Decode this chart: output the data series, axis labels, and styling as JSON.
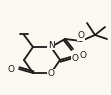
{
  "bg_color": "#faf8f0",
  "line_color": "#1a1a1a",
  "lw": 1.3,
  "fs": 6.5,
  "fig_w": 1.11,
  "fig_h": 0.95,
  "dpi": 100,
  "xlim": [
    0,
    111
  ],
  "ylim": [
    0,
    95
  ]
}
